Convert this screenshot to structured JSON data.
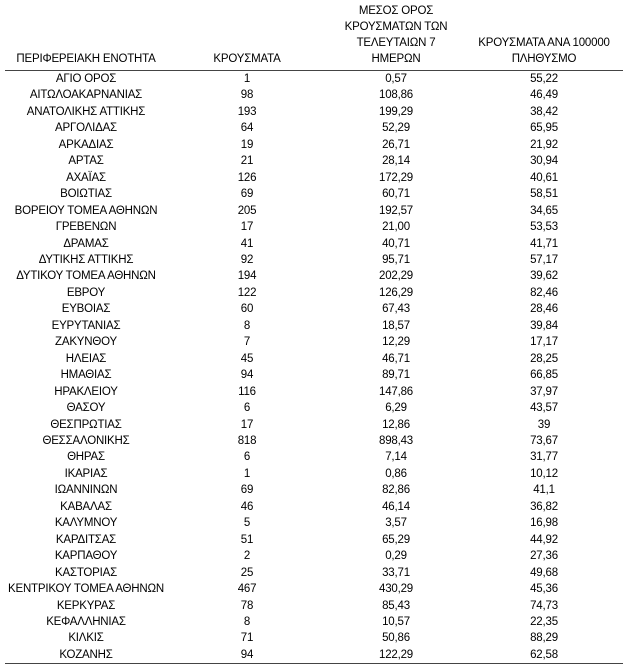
{
  "headers": [
    "ΠΕΡΙΦΕΡΕΙΑΚΗ ΕΝΟΤΗΤΑ",
    "ΚΡΟΥΣΜΑΤΑ",
    "ΜΕΣΟΣ ΟΡΟΣ ΚΡΟΥΣΜΑΤΩΝ ΤΩΝ ΤΕΛΕΥΤΑΙΩΝ 7 ΗΜΕΡΩΝ",
    "ΚΡΟΥΣΜΑΤΑ ΑΝΑ 100000 ΠΛΗΘΥΣΜΟ"
  ],
  "rows": [
    [
      "ΑΓΙΟ ΟΡΟΣ",
      "1",
      "0,57",
      "55,22"
    ],
    [
      "ΑΙΤΩΛΟΑΚΑΡΝΑΝΙΑΣ",
      "98",
      "108,86",
      "46,49"
    ],
    [
      "ΑΝΑΤΟΛΙΚΗΣ ΑΤΤΙΚΗΣ",
      "193",
      "199,29",
      "38,42"
    ],
    [
      "ΑΡΓΟΛΙΔΑΣ",
      "64",
      "52,29",
      "65,95"
    ],
    [
      "ΑΡΚΑΔΙΑΣ",
      "19",
      "26,71",
      "21,92"
    ],
    [
      "ΑΡΤΑΣ",
      "21",
      "28,14",
      "30,94"
    ],
    [
      "ΑΧΑΪΑΣ",
      "126",
      "172,29",
      "40,61"
    ],
    [
      "ΒΟΙΩΤΙΑΣ",
      "69",
      "60,71",
      "58,51"
    ],
    [
      "ΒΟΡΕΙΟΥ ΤΟΜΕΑ ΑΘΗΝΩΝ",
      "205",
      "192,57",
      "34,65"
    ],
    [
      "ΓΡΕΒΕΝΩΝ",
      "17",
      "21,00",
      "53,53"
    ],
    [
      "ΔΡΑΜΑΣ",
      "41",
      "40,71",
      "41,71"
    ],
    [
      "ΔΥΤΙΚΗΣ ΑΤΤΙΚΗΣ",
      "92",
      "95,71",
      "57,17"
    ],
    [
      "ΔΥΤΙΚΟΥ ΤΟΜΕΑ ΑΘΗΝΩΝ",
      "194",
      "202,29",
      "39,62"
    ],
    [
      "ΕΒΡΟΥ",
      "122",
      "126,29",
      "82,46"
    ],
    [
      "ΕΥΒΟΙΑΣ",
      "60",
      "67,43",
      "28,46"
    ],
    [
      "ΕΥΡΥΤΑΝΙΑΣ",
      "8",
      "18,57",
      "39,84"
    ],
    [
      "ΖΑΚΥΝΘΟΥ",
      "7",
      "12,29",
      "17,17"
    ],
    [
      "ΗΛΕΙΑΣ",
      "45",
      "46,71",
      "28,25"
    ],
    [
      "ΗΜΑΘΙΑΣ",
      "94",
      "89,71",
      "66,85"
    ],
    [
      "ΗΡΑΚΛΕΙΟΥ",
      "116",
      "147,86",
      "37,97"
    ],
    [
      "ΘΑΣΟΥ",
      "6",
      "6,29",
      "43,57"
    ],
    [
      "ΘΕΣΠΡΩΤΙΑΣ",
      "17",
      "12,86",
      "39"
    ],
    [
      "ΘΕΣΣΑΛΟΝΙΚΗΣ",
      "818",
      "898,43",
      "73,67"
    ],
    [
      "ΘΗΡΑΣ",
      "6",
      "7,14",
      "31,77"
    ],
    [
      "ΙΚΑΡΙΑΣ",
      "1",
      "0,86",
      "10,12"
    ],
    [
      "ΙΩΑΝΝΙΝΩΝ",
      "69",
      "82,86",
      "41,1"
    ],
    [
      "ΚΑΒΑΛΑΣ",
      "46",
      "46,14",
      "36,82"
    ],
    [
      "ΚΑΛΥΜΝΟΥ",
      "5",
      "3,57",
      "16,98"
    ],
    [
      "ΚΑΡΔΙΤΣΑΣ",
      "51",
      "65,29",
      "44,92"
    ],
    [
      "ΚΑΡΠΑΘΟΥ",
      "2",
      "0,29",
      "27,36"
    ],
    [
      "ΚΑΣΤΟΡΙΑΣ",
      "25",
      "33,71",
      "49,68"
    ],
    [
      "ΚΕΝΤΡΙΚΟΥ ΤΟΜΕΑ ΑΘΗΝΩΝ",
      "467",
      "430,29",
      "45,36"
    ],
    [
      "ΚΕΡΚΥΡΑΣ",
      "78",
      "85,43",
      "74,73"
    ],
    [
      "ΚΕΦΑΛΛΗΝΙΑΣ",
      "8",
      "10,57",
      "22,35"
    ],
    [
      "ΚΙΛΚΙΣ",
      "71",
      "50,86",
      "88,29"
    ],
    [
      "ΚΟΖΑΝΗΣ",
      "94",
      "122,29",
      "62,58"
    ]
  ]
}
